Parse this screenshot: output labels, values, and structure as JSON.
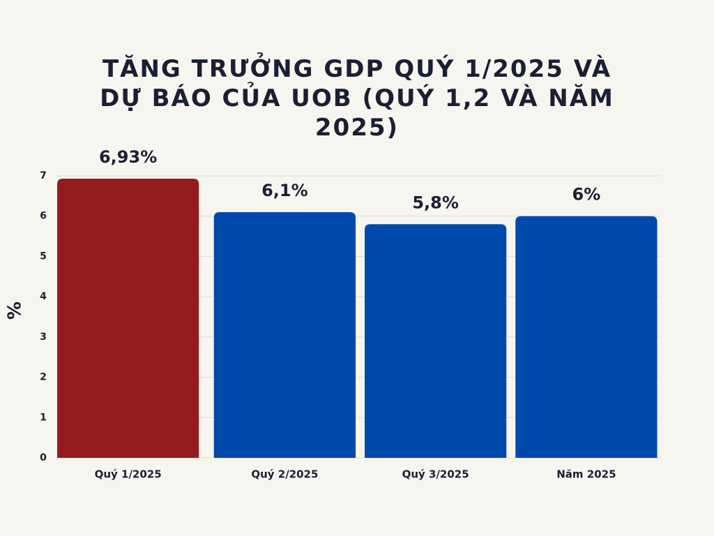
{
  "chart_data": {
    "type": "bar",
    "title": "TĂNG TRƯỞNG GDP QUÝ 1/2025 VÀ DỰ BÁO CỦA UOB (QUÝ 1,2 VÀ NĂM 2025)",
    "y_label": "%",
    "categories": [
      "Quý 1/2025",
      "Quý 2/2025",
      "Quý 3/2025",
      "Năm 2025"
    ],
    "values": [
      6.93,
      6.1,
      5.8,
      6
    ],
    "value_labels": [
      "6,93%",
      "6,1%",
      "5,8%",
      "6%"
    ],
    "colors": [
      "#951c1c",
      "#004aad",
      "#004aad",
      "#004aad"
    ],
    "ylim": [
      0,
      7
    ],
    "yticks": [
      0,
      1,
      2,
      3,
      4,
      5,
      6,
      7
    ],
    "grid": true
  }
}
